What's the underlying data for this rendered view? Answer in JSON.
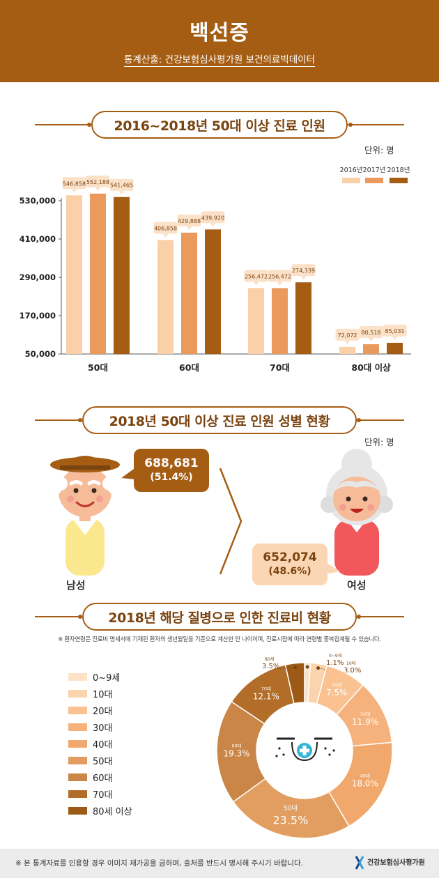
{
  "header": {
    "title": "백선증",
    "source": "통계산출: 건강보험심사평가원 보건의료빅데이터"
  },
  "section1": {
    "title": "2016~2018년 50대 이상 진료 인원",
    "unit": "단위: 명"
  },
  "section2": {
    "title": "2018년 50대 이상 진료 인원 성별 현황",
    "unit": "단위: 명",
    "male": {
      "label": "남성",
      "value": "688,681",
      "percent": "(51.4%)"
    },
    "female": {
      "label": "여성",
      "value": "652,074",
      "percent": "(48.6%)"
    }
  },
  "section3": {
    "title": "2018년 해당 질병으로 인한 진료비 현황",
    "note": "※ 환자연령은 진료비 명세서에 기재된 환자의 생년월일을 기준으로 계산한 만 나이이며, 진료시점에 따라 연령별 중복집계될 수 있습니다.",
    "legend": [
      "0~9세",
      "10대",
      "20대",
      "30대",
      "40대",
      "50대",
      "60대",
      "70대",
      "80세 이상"
    ]
  },
  "footer": {
    "note": "※ 본 통계자료를 인용할 경우 이미지 재가공을 금하며, 출처를 반드시 명시해 주시기 바랍니다.",
    "logo_text": "건강보험심사평가원"
  },
  "colors": {
    "brand": "#a55d14",
    "y2016": "#fbcfa8",
    "y2017": "#eb9a5e",
    "y2018": "#a55d14"
  },
  "chart_data": [
    {
      "type": "bar",
      "categories": [
        "50대",
        "60대",
        "70대",
        "80대 이상"
      ],
      "series": [
        {
          "name": "2016년",
          "values": [
            546858,
            406858,
            256472,
            72072
          ],
          "labels": [
            "546,858",
            "406,858",
            "256,472",
            "72,072"
          ]
        },
        {
          "name": "2017년",
          "values": [
            552188,
            429888,
            256472,
            80518
          ],
          "labels": [
            "552,188",
            "429,888",
            "256,472",
            "80,518"
          ]
        },
        {
          "name": "2018년",
          "values": [
            541465,
            439920,
            274339,
            85031
          ],
          "labels": [
            "541,465",
            "439,920",
            "274,339",
            "85,031"
          ]
        }
      ],
      "yticks": [
        50000,
        170000,
        290000,
        410000,
        530000
      ],
      "ytick_labels": [
        "50,000",
        "170,000",
        "290,000",
        "410,000",
        "530,000"
      ],
      "ylim": [
        50000,
        530000
      ],
      "legend_position": "top-right"
    },
    {
      "type": "pie",
      "donut": true,
      "categories": [
        "0~9세",
        "10대",
        "20대",
        "30대",
        "40대",
        "50대",
        "60대",
        "70대",
        "80세 이상"
      ],
      "values": [
        1.1,
        3.0,
        7.5,
        11.9,
        18.0,
        23.5,
        19.3,
        12.1,
        3.5
      ],
      "labels": [
        {
          "name": "0~9세",
          "pct": "1.1%"
        },
        {
          "name": "10대",
          "pct": "3.0%"
        },
        {
          "name": "20대",
          "pct": "7.5%"
        },
        {
          "name": "30대",
          "pct": "11.9%"
        },
        {
          "name": "40대",
          "pct": "18.0%"
        },
        {
          "name": "50대",
          "pct": "23.5%"
        },
        {
          "name": "60대",
          "pct": "19.3%"
        },
        {
          "name": "70대",
          "pct": "12.1%"
        },
        {
          "name": "80세",
          "pct": "3.5%"
        }
      ],
      "colors": [
        "#fde2c8",
        "#fbd3ad",
        "#f9c290",
        "#f5b27c",
        "#f1a86c",
        "#e19e60",
        "#c98646",
        "#b26e28",
        "#9d5a16"
      ]
    }
  ]
}
